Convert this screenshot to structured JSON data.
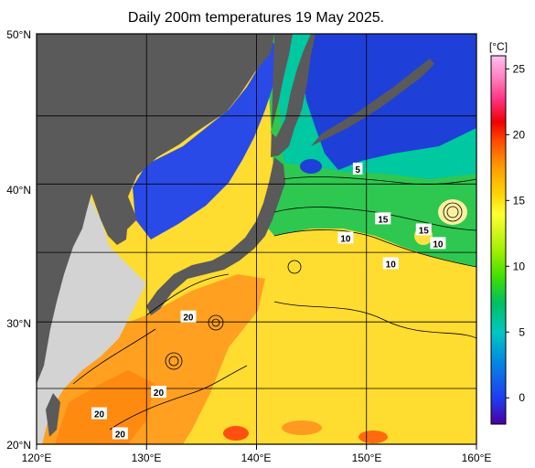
{
  "title": "Daily 200m temperatures 19 May 2025.",
  "map": {
    "region": "Western North Pacific / Japan",
    "lon_range": [
      120,
      160
    ],
    "lat_range": [
      20,
      50
    ],
    "lon_ticks": [
      "120°E",
      "130°E",
      "140°E",
      "150°E",
      "160°E"
    ],
    "lat_ticks": [
      "50°N",
      "40°N",
      "30°N",
      "20°N"
    ],
    "land_color": "#5a5a5a",
    "shelf_color": "#d3d3d3"
  },
  "colorbar": {
    "unit": "[°C]",
    "range": [
      -2,
      26
    ],
    "ticks": [
      "25",
      "20",
      "15",
      "10",
      "5",
      "0"
    ],
    "tick_values": [
      25,
      20,
      15,
      10,
      5,
      0
    ],
    "colors": [
      "#4b00a0",
      "#1f3cf0",
      "#0090e0",
      "#00c8c0",
      "#00c060",
      "#40e000",
      "#a0f000",
      "#ffff30",
      "#ffd000",
      "#ff9a00",
      "#ff4a00",
      "#f00000",
      "#ff3080",
      "#ff80c0",
      "#ffc0f0"
    ]
  },
  "contour_labels": [
    {
      "text": "5",
      "lon": 149.2,
      "lat": 41.4
    },
    {
      "text": "15",
      "lon": 151.5,
      "lat": 37.9
    },
    {
      "text": "10",
      "lon": 148.1,
      "lat": 36.5
    },
    {
      "text": "15",
      "lon": 155.2,
      "lat": 37.1
    },
    {
      "text": "10",
      "lon": 156.5,
      "lat": 36.1
    },
    {
      "text": "10",
      "lon": 152.2,
      "lat": 34.6
    },
    {
      "text": "20",
      "lon": 133.8,
      "lat": 30.5
    },
    {
      "text": "20",
      "lon": 131.1,
      "lat": 24.4
    },
    {
      "text": "20",
      "lon": 125.7,
      "lat": 22.6
    },
    {
      "text": "20",
      "lon": 127.6,
      "lat": 20.9
    }
  ]
}
